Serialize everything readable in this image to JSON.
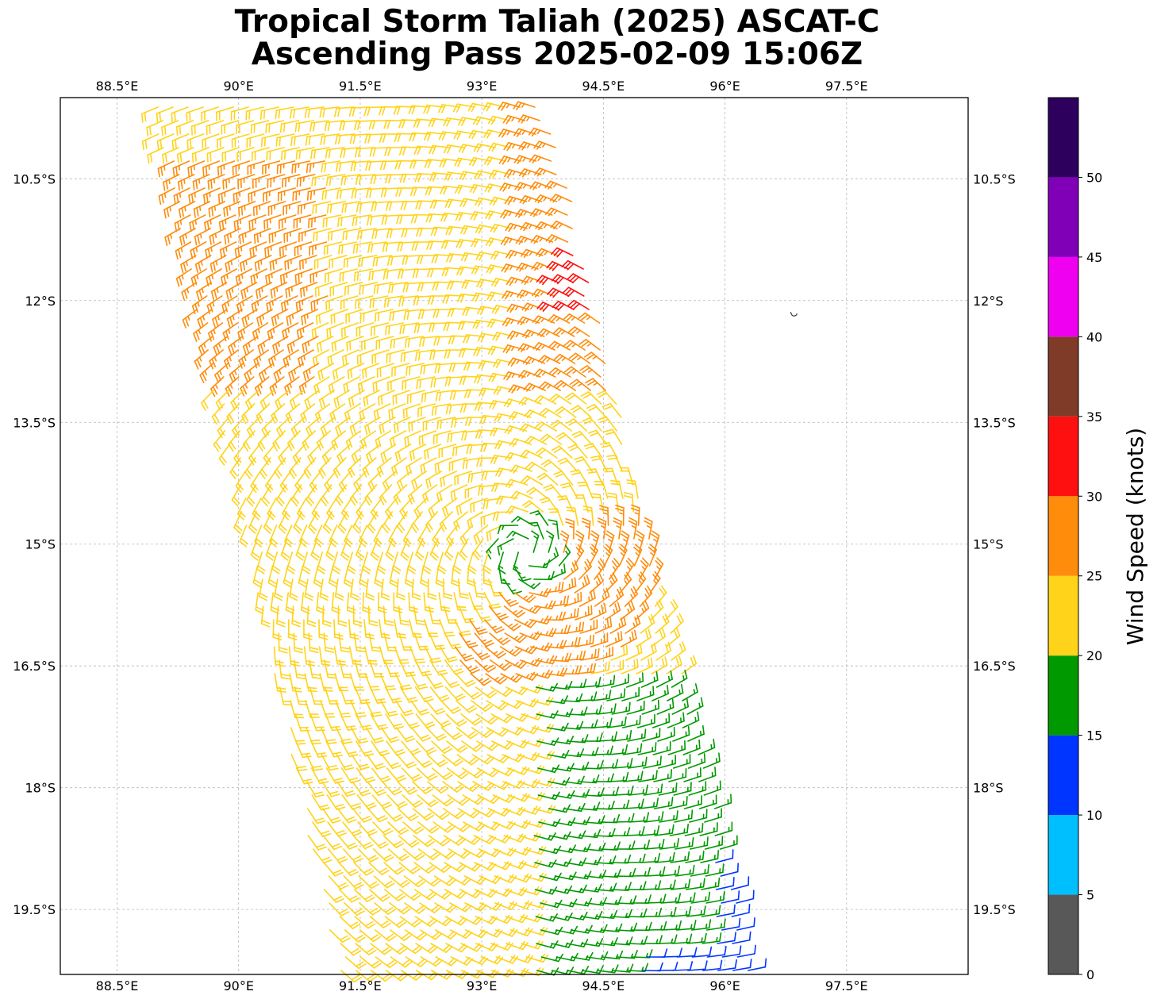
{
  "title": {
    "line1": "Tropical Storm Taliah (2025) ASCAT-C",
    "line2": "Ascending Pass 2025-02-09 15:06Z"
  },
  "map": {
    "lon_range": [
      87.8,
      99.0
    ],
    "lat_range": [
      -20.3,
      -9.5
    ],
    "lon_ticks": [
      {
        "value": 88.5,
        "label": "88.5°E"
      },
      {
        "value": 90.0,
        "label": "90°E"
      },
      {
        "value": 91.5,
        "label": "91.5°E"
      },
      {
        "value": 93.0,
        "label": "93°E"
      },
      {
        "value": 94.5,
        "label": "94.5°E"
      },
      {
        "value": 96.0,
        "label": "96°E"
      },
      {
        "value": 97.5,
        "label": "97.5°E"
      }
    ],
    "lat_ticks": [
      {
        "value": -10.5,
        "label": "10.5°S"
      },
      {
        "value": -12.0,
        "label": "12°S"
      },
      {
        "value": -13.5,
        "label": "13.5°S"
      },
      {
        "value": -15.0,
        "label": "15°S"
      },
      {
        "value": -16.5,
        "label": "16.5°S"
      },
      {
        "value": -18.0,
        "label": "18°S"
      },
      {
        "value": -19.5,
        "label": "19.5°S"
      }
    ],
    "gridlines": true,
    "storm_center": {
      "lon": 93.55,
      "lat": -15.1
    }
  },
  "colorbar": {
    "label": "Wind Speed (knots)",
    "bins": [
      {
        "from": 0,
        "to": 5,
        "color": "#585858"
      },
      {
        "from": 5,
        "to": 10,
        "color": "#00bfff"
      },
      {
        "from": 10,
        "to": 15,
        "color": "#0035ff"
      },
      {
        "from": 15,
        "to": 20,
        "color": "#009900"
      },
      {
        "from": 20,
        "to": 25,
        "color": "#ffd31a"
      },
      {
        "from": 25,
        "to": 30,
        "color": "#ff8c0a"
      },
      {
        "from": 30,
        "to": 35,
        "color": "#ff1010"
      },
      {
        "from": 35,
        "to": 40,
        "color": "#7f3b28"
      },
      {
        "from": 40,
        "to": 45,
        "color": "#f000f0"
      },
      {
        "from": 45,
        "to": 50,
        "color": "#8000b8"
      },
      {
        "from": 50,
        "to": 55,
        "color": "#2e005e"
      }
    ],
    "tick_labels": [
      "0",
      "5",
      "10",
      "15",
      "20",
      "25",
      "30",
      "35",
      "40",
      "45",
      "50"
    ]
  }
}
